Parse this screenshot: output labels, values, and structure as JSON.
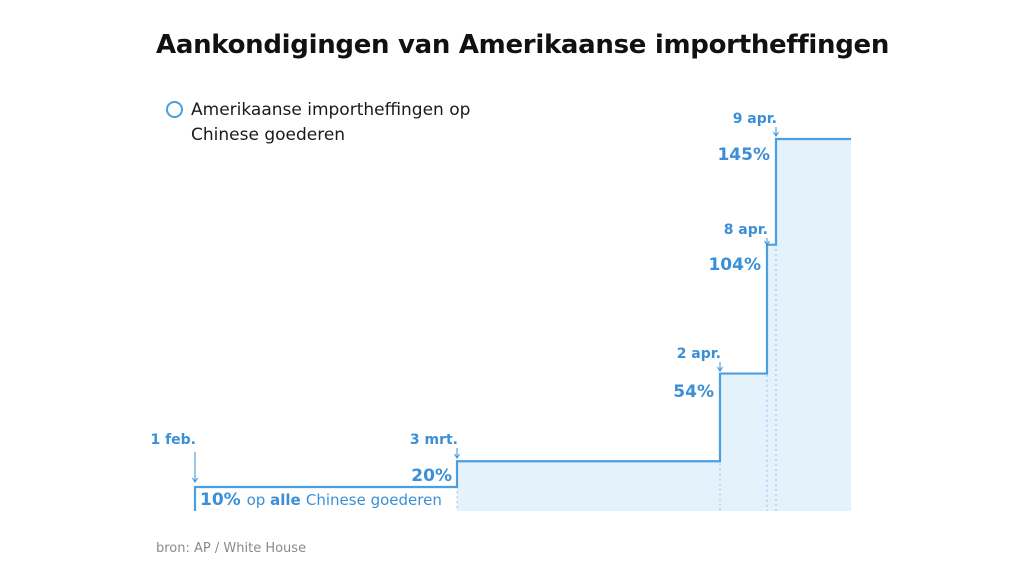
{
  "title": "Aankondigingen van Amerikaanse importheffingen",
  "source": "bron: AP / White House",
  "colors": {
    "line": "#4a9fe0",
    "fill": "#e4f2fc",
    "text_blue": "#3b8fd6",
    "title": "#111111",
    "source": "#8a8a8a"
  },
  "chart_data": {
    "type": "area",
    "step": true,
    "title": "Aankondigingen van Amerikaanse importheffingen",
    "xlabel": "",
    "ylabel": "",
    "ylim": [
      0,
      150
    ],
    "series": [
      {
        "name": "Amerikaanse importheffingen op Chinese goederen",
        "points": [
          {
            "date": "1 feb.",
            "value": 10,
            "label": "10%"
          },
          {
            "date": "3 mrt.",
            "value": 20,
            "label": "20%"
          },
          {
            "date": "2 apr.",
            "value": 54,
            "label": "54%"
          },
          {
            "date": "8 apr.",
            "value": 104,
            "label": "104%"
          },
          {
            "date": "9 apr.",
            "value": 145,
            "label": "145%"
          }
        ]
      }
    ],
    "first_note": {
      "pre": "op",
      "bold": "alle",
      "post": "Chinese goederen"
    }
  }
}
